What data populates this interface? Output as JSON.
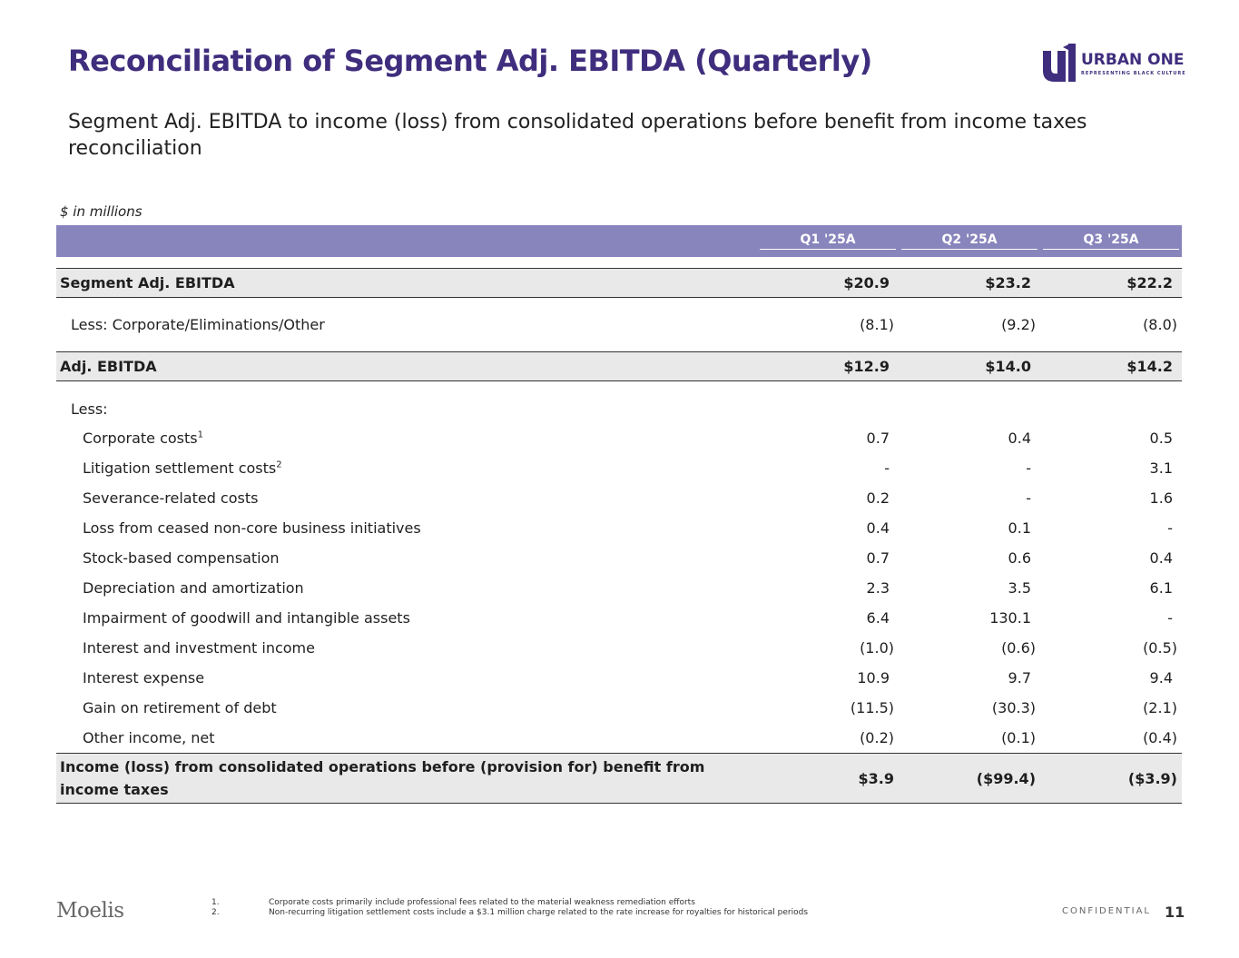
{
  "title": "Reconciliation of Segment Adj. EBITDA (Quarterly)",
  "logo": {
    "name": "URBAN ONE",
    "tagline": "REPRESENTING BLACK CULTURE",
    "mark": "U1"
  },
  "subtitle": "Segment Adj. EBITDA to income (loss) from consolidated operations before benefit from income taxes reconciliation",
  "unit_note": "$ in millions",
  "columns": [
    "Q1 '25A",
    "Q2 '25A",
    "Q3 '25A"
  ],
  "rows": [
    {
      "label": "Segment Adj. EBITDA",
      "values": [
        "$20.9",
        "$23.2",
        "$22.2"
      ]
    },
    {
      "label": "Less: Corporate/Eliminations/Other",
      "values": [
        "(8.1)",
        "(9.2)",
        "(8.0)"
      ]
    },
    {
      "label": "Adj. EBITDA",
      "values": [
        "$12.9",
        "$14.0",
        "$14.2"
      ]
    },
    {
      "label": "Less:",
      "values": [
        "",
        "",
        ""
      ]
    },
    {
      "label": "Corporate costs",
      "sup": "1",
      "values": [
        "0.7",
        "0.4",
        "0.5"
      ]
    },
    {
      "label": "Litigation settlement costs",
      "sup": "2",
      "values": [
        "-",
        "-",
        "3.1"
      ]
    },
    {
      "label": "Severance-related costs",
      "values": [
        "0.2",
        "-",
        "1.6"
      ]
    },
    {
      "label": "Loss from ceased non-core business initiatives",
      "values": [
        "0.4",
        "0.1",
        "-"
      ]
    },
    {
      "label": "Stock-based compensation",
      "values": [
        "0.7",
        "0.6",
        "0.4"
      ]
    },
    {
      "label": "Depreciation and amortization",
      "values": [
        "2.3",
        "3.5",
        "6.1"
      ]
    },
    {
      "label": "Impairment of goodwill and intangible assets",
      "values": [
        "6.4",
        "130.1",
        "-"
      ]
    },
    {
      "label": "Interest and investment income",
      "values": [
        "(1.0)",
        "(0.6)",
        "(0.5)"
      ]
    },
    {
      "label": "Interest expense",
      "values": [
        "10.9",
        "9.7",
        "9.4"
      ]
    },
    {
      "label": "Gain on retirement of debt",
      "values": [
        "(11.5)",
        "(30.3)",
        "(2.1)"
      ]
    },
    {
      "label": "Other income, net",
      "values": [
        "(0.2)",
        "(0.1)",
        "(0.4)"
      ]
    },
    {
      "label": "Income (loss) from consolidated operations before (provision for) benefit from income taxes",
      "values": [
        "$3.9",
        "($99.4)",
        "($3.9)"
      ]
    }
  ],
  "footer": {
    "brand": "Moelis",
    "notes": [
      {
        "num": "1.",
        "text": "Corporate costs primarily include professional fees related to the material weakness remediation efforts"
      },
      {
        "num": "2.",
        "text": "Non-recurring litigation settlement costs include a $3.1 million charge related to the rate increase for royalties for historical periods"
      }
    ],
    "confidential": "CONFIDENTIAL",
    "page": "11"
  },
  "colors": {
    "title": "#3f2d7d",
    "header_bar": "#8884bc",
    "total_row": "#e9e9e9"
  }
}
